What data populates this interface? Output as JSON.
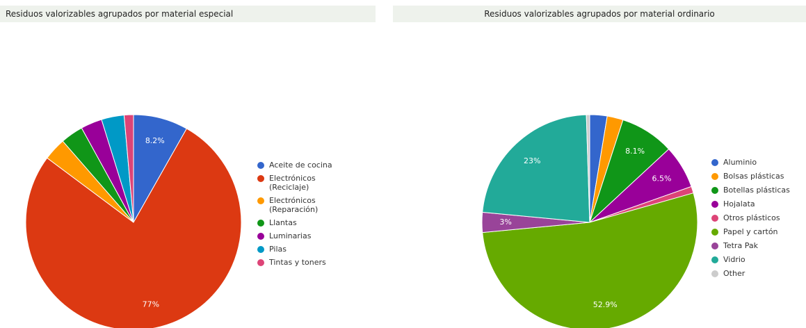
{
  "chart_data": [
    {
      "type": "pie",
      "title": "Residuos valorizables agrupados por material especial",
      "categories": [
        "Aceite de cocina",
        "Electrónicos (Reciclaje)",
        "Electrónicos (Reparación)",
        "Llantas",
        "Luminarias",
        "Pilas",
        "Tintas y toners"
      ],
      "values": [
        8.2,
        77,
        3.4,
        3.4,
        3.2,
        3.4,
        1.4
      ],
      "value_labels": [
        "8.2%",
        "77%",
        null,
        null,
        null,
        null,
        null
      ],
      "colors": [
        "#3366cc",
        "#dc3912",
        "#ff9900",
        "#109618",
        "#990099",
        "#0099c6",
        "#dd4477"
      ]
    },
    {
      "type": "pie",
      "title": "Residuos valorizables agrupados por material ordinario",
      "categories": [
        "Aluminio",
        "Bolsas plásticas",
        "Botellas plásticas",
        "Hojalata",
        "Otros plásticos",
        "Papel y cartón",
        "Tetra Pak",
        "Vidrio",
        "Other"
      ],
      "values": [
        2.6,
        2.4,
        8.1,
        6.5,
        1.0,
        52.9,
        3,
        23,
        0.5
      ],
      "value_labels": [
        null,
        null,
        "8.1%",
        "6.5%",
        null,
        "52.9%",
        "3%",
        "23%",
        null
      ],
      "colors": [
        "#3366cc",
        "#ff9900",
        "#109618",
        "#990099",
        "#dd4477",
        "#66aa00",
        "#994499",
        "#22aa99",
        "#cccccc"
      ]
    }
  ]
}
